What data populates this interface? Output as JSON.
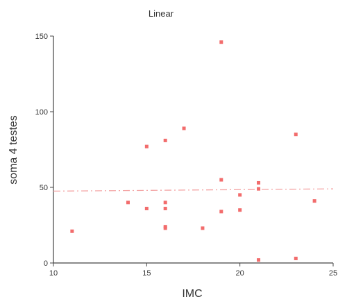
{
  "chart_data": {
    "type": "scatter",
    "title": "Linear",
    "xlabel": "IMC",
    "ylabel": "soma 4 testes",
    "xlim": [
      10,
      25
    ],
    "ylim": [
      0,
      150
    ],
    "xticks": [
      10,
      15,
      20,
      25
    ],
    "yticks": [
      0,
      50,
      100,
      150
    ],
    "grid": false,
    "points": [
      {
        "x": 11,
        "y": 21
      },
      {
        "x": 14,
        "y": 40
      },
      {
        "x": 15,
        "y": 77
      },
      {
        "x": 15,
        "y": 36
      },
      {
        "x": 16,
        "y": 81
      },
      {
        "x": 16,
        "y": 40
      },
      {
        "x": 16,
        "y": 36
      },
      {
        "x": 16,
        "y": 24
      },
      {
        "x": 16,
        "y": 23
      },
      {
        "x": 17,
        "y": 89
      },
      {
        "x": 18,
        "y": 23
      },
      {
        "x": 19,
        "y": 146
      },
      {
        "x": 19,
        "y": 55
      },
      {
        "x": 19,
        "y": 34
      },
      {
        "x": 20,
        "y": 45
      },
      {
        "x": 20,
        "y": 35
      },
      {
        "x": 21,
        "y": 53
      },
      {
        "x": 21,
        "y": 49
      },
      {
        "x": 21,
        "y": 2
      },
      {
        "x": 23,
        "y": 85
      },
      {
        "x": 23,
        "y": 3
      },
      {
        "x": 24,
        "y": 41
      }
    ],
    "fit_line": {
      "x": [
        10,
        25
      ],
      "y": [
        47.5,
        49.0
      ],
      "style": "dash-dot"
    },
    "colors": {
      "points": "#f26c6c",
      "fit_line": "#f4a3a3",
      "axis": "#444444"
    }
  }
}
